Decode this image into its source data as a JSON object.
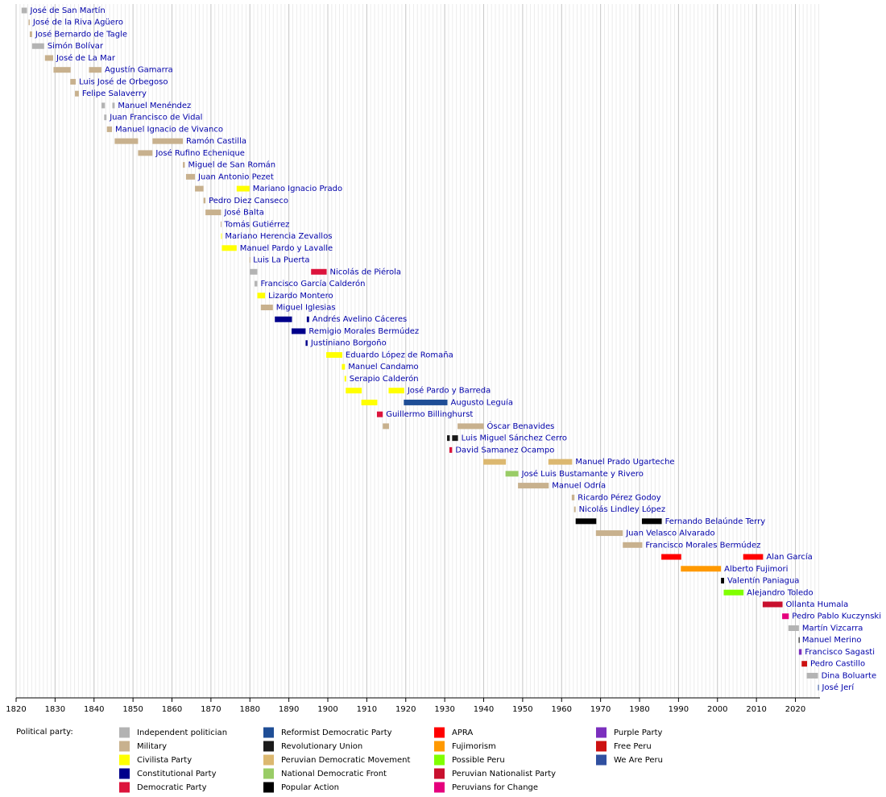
{
  "chart_data": {
    "type": "timeline",
    "xlim": [
      1820,
      2026.3
    ],
    "xticks": [
      1820,
      1830,
      1840,
      1850,
      1860,
      1870,
      1880,
      1890,
      1900,
      1910,
      1920,
      1930,
      1940,
      1950,
      1960,
      1970,
      1980,
      1990,
      2000,
      2010,
      2020
    ],
    "grid": true,
    "minor_grid": true,
    "legend_title": "Political party:",
    "parties": [
      {
        "name": "Independent politician",
        "color": "#b3b3b3"
      },
      {
        "name": "Military",
        "color": "#c8b18e"
      },
      {
        "name": "Civilista Party",
        "color": "#ffff00"
      },
      {
        "name": "Constitutional Party",
        "color": "#00008b"
      },
      {
        "name": "Democratic Party",
        "color": "#dc143c"
      },
      {
        "name": "Reformist Democratic Party",
        "color": "#1f4e96"
      },
      {
        "name": "Revolutionary Union",
        "color": "#1a1a1a"
      },
      {
        "name": "Peruvian Democratic Movement",
        "color": "#dcb870"
      },
      {
        "name": "National Democratic Front",
        "color": "#99cc66"
      },
      {
        "name": "Popular Action",
        "color": "#000000"
      },
      {
        "name": "APRA",
        "color": "#ff0000"
      },
      {
        "name": "Fujimorism",
        "color": "#ff9900"
      },
      {
        "name": "Possible Peru",
        "color": "#80ff00"
      },
      {
        "name": "Peruvian Nationalist Party",
        "color": "#c8102e"
      },
      {
        "name": "Peruvians for Change",
        "color": "#e5007d"
      },
      {
        "name": "Purple Party",
        "color": "#7b2fbe"
      },
      {
        "name": "Free Peru",
        "color": "#cc1111"
      },
      {
        "name": "We Are Peru",
        "color": "#3050a0"
      }
    ],
    "rows": [
      {
        "name": "José de San Martín",
        "spans": [
          {
            "start": 1821.4,
            "end": 1822.8,
            "party": "Independent politician"
          }
        ]
      },
      {
        "name": "José de la Riva Agüero",
        "spans": [
          {
            "start": 1823.2,
            "end": 1823.5,
            "party": "Military"
          }
        ]
      },
      {
        "name": "José Bernardo de Tagle",
        "spans": [
          {
            "start": 1823.5,
            "end": 1824.1,
            "party": "Military"
          }
        ]
      },
      {
        "name": "Simón Bolívar",
        "spans": [
          {
            "start": 1824.1,
            "end": 1827.2,
            "party": "Independent politician"
          }
        ]
      },
      {
        "name": "José de La Mar",
        "spans": [
          {
            "start": 1827.4,
            "end": 1829.5,
            "party": "Military"
          }
        ]
      },
      {
        "name": "Agustín Gamarra",
        "spans": [
          {
            "start": 1829.6,
            "end": 1834.0,
            "party": "Military"
          },
          {
            "start": 1838.7,
            "end": 1841.9,
            "party": "Military"
          }
        ]
      },
      {
        "name": "Luis José de Orbegoso",
        "spans": [
          {
            "start": 1833.9,
            "end": 1835.3,
            "party": "Military"
          }
        ]
      },
      {
        "name": "Felipe Salaverry",
        "spans": [
          {
            "start": 1835.1,
            "end": 1836.1,
            "party": "Military"
          }
        ]
      },
      {
        "name": "Manuel Menéndez",
        "spans": [
          {
            "start": 1841.9,
            "end": 1842.8,
            "party": "Independent politician"
          },
          {
            "start": 1844.7,
            "end": 1845.3,
            "party": "Independent politician"
          }
        ]
      },
      {
        "name": "Juan Francisco de Vidal",
        "spans": [
          {
            "start": 1842.6,
            "end": 1843.2,
            "party": "Independent politician"
          }
        ]
      },
      {
        "name": "Manuel Ignacio de Vivanco",
        "spans": [
          {
            "start": 1843.3,
            "end": 1844.6,
            "party": "Military"
          }
        ]
      },
      {
        "name": "Ramón Castilla",
        "spans": [
          {
            "start": 1845.3,
            "end": 1851.3,
            "party": "Military"
          },
          {
            "start": 1855.0,
            "end": 1862.8,
            "party": "Military"
          }
        ]
      },
      {
        "name": "José Rufino Echenique",
        "spans": [
          {
            "start": 1851.3,
            "end": 1855.0,
            "party": "Military"
          }
        ]
      },
      {
        "name": "Miguel de San Román",
        "spans": [
          {
            "start": 1862.8,
            "end": 1863.3,
            "party": "Military"
          }
        ]
      },
      {
        "name": "Juan Antonio Pezet",
        "spans": [
          {
            "start": 1863.6,
            "end": 1865.9,
            "party": "Military"
          }
        ]
      },
      {
        "name": "Mariano Ignacio Prado",
        "spans": [
          {
            "start": 1865.9,
            "end": 1868.1,
            "party": "Military"
          },
          {
            "start": 1876.6,
            "end": 1879.9,
            "party": "Civilista Party"
          }
        ]
      },
      {
        "name": "Pedro Diez Canseco",
        "spans": [
          {
            "start": 1868.1,
            "end": 1868.6,
            "party": "Military"
          }
        ]
      },
      {
        "name": "José Balta",
        "spans": [
          {
            "start": 1868.6,
            "end": 1872.6,
            "party": "Military"
          }
        ]
      },
      {
        "name": "Tomás Gutiérrez",
        "spans": [
          {
            "start": 1872.5,
            "end": 1872.6,
            "party": "Military"
          }
        ]
      },
      {
        "name": "Mariano Herencia Zevallos",
        "spans": [
          {
            "start": 1872.6,
            "end": 1872.8,
            "party": "Civilista Party"
          }
        ]
      },
      {
        "name": "Manuel Pardo y Lavalle",
        "spans": [
          {
            "start": 1872.8,
            "end": 1876.6,
            "party": "Civilista Party"
          }
        ]
      },
      {
        "name": "Luis La Puerta",
        "spans": [
          {
            "start": 1879.9,
            "end": 1880.0,
            "party": "Military"
          }
        ]
      },
      {
        "name": "Nicolás de Piérola",
        "spans": [
          {
            "start": 1880.0,
            "end": 1881.9,
            "party": "Independent politician"
          },
          {
            "start": 1895.7,
            "end": 1899.7,
            "party": "Democratic Party"
          }
        ]
      },
      {
        "name": "Francisco García Calderón",
        "spans": [
          {
            "start": 1881.2,
            "end": 1881.9,
            "party": "Independent politician"
          }
        ]
      },
      {
        "name": "Lizardo Montero",
        "spans": [
          {
            "start": 1881.9,
            "end": 1883.9,
            "party": "Civilista Party"
          }
        ]
      },
      {
        "name": "Miguel Iglesias",
        "spans": [
          {
            "start": 1882.8,
            "end": 1885.9,
            "party": "Military"
          }
        ]
      },
      {
        "name": "Andrés Avelino Cáceres",
        "spans": [
          {
            "start": 1886.4,
            "end": 1890.8,
            "party": "Constitutional Party"
          },
          {
            "start": 1894.6,
            "end": 1895.2,
            "party": "Constitutional Party"
          }
        ]
      },
      {
        "name": "Remigio Morales Bermúdez",
        "spans": [
          {
            "start": 1890.7,
            "end": 1894.3,
            "party": "Constitutional Party"
          }
        ]
      },
      {
        "name": "Justiniano Borgoño",
        "spans": [
          {
            "start": 1894.3,
            "end": 1894.8,
            "party": "Constitutional Party"
          }
        ]
      },
      {
        "name": "Eduardo López de Romaña",
        "spans": [
          {
            "start": 1899.6,
            "end": 1903.7,
            "party": "Civilista Party"
          }
        ]
      },
      {
        "name": "Manuel Candamo",
        "spans": [
          {
            "start": 1903.6,
            "end": 1904.4,
            "party": "Civilista Party"
          }
        ]
      },
      {
        "name": "Serapio Calderón",
        "spans": [
          {
            "start": 1904.3,
            "end": 1904.7,
            "party": "Civilista Party"
          }
        ]
      },
      {
        "name": "José Pardo y Barreda",
        "spans": [
          {
            "start": 1904.6,
            "end": 1908.7,
            "party": "Civilista Party"
          },
          {
            "start": 1915.6,
            "end": 1919.6,
            "party": "Civilista Party"
          }
        ]
      },
      {
        "name": "Augusto Leguía",
        "spans": [
          {
            "start": 1908.6,
            "end": 1912.7,
            "party": "Civilista Party"
          },
          {
            "start": 1919.5,
            "end": 1930.7,
            "party": "Reformist Democratic Party"
          }
        ]
      },
      {
        "name": "Guillermo Billinghurst",
        "spans": [
          {
            "start": 1912.6,
            "end": 1914.1,
            "party": "Democratic Party"
          }
        ]
      },
      {
        "name": "Óscar Benavides",
        "spans": [
          {
            "start": 1914.1,
            "end": 1915.7,
            "party": "Military"
          },
          {
            "start": 1933.3,
            "end": 1940.0,
            "party": "Military"
          }
        ]
      },
      {
        "name": "Luis Miguel Sánchez Cerro",
        "spans": [
          {
            "start": 1930.6,
            "end": 1931.3,
            "party": "Revolutionary Union"
          },
          {
            "start": 1931.9,
            "end": 1933.4,
            "party": "Revolutionary Union"
          }
        ]
      },
      {
        "name": "David Samanez Ocampo",
        "spans": [
          {
            "start": 1931.2,
            "end": 1931.9,
            "party": "Democratic Party"
          }
        ]
      },
      {
        "name": "Manuel Prado Ugarteche",
        "spans": [
          {
            "start": 1939.9,
            "end": 1945.7,
            "party": "Peruvian Democratic Movement"
          },
          {
            "start": 1956.6,
            "end": 1962.7,
            "party": "Peruvian Democratic Movement"
          }
        ]
      },
      {
        "name": "José Luis Bustamante y Rivero",
        "spans": [
          {
            "start": 1945.6,
            "end": 1948.9,
            "party": "National Democratic Front"
          }
        ]
      },
      {
        "name": "Manuel Odría",
        "spans": [
          {
            "start": 1948.8,
            "end": 1956.7,
            "party": "Military"
          }
        ]
      },
      {
        "name": "Ricardo Pérez Godoy",
        "spans": [
          {
            "start": 1962.6,
            "end": 1963.3,
            "party": "Military"
          }
        ]
      },
      {
        "name": "Nicolás Lindley López",
        "spans": [
          {
            "start": 1963.2,
            "end": 1963.6,
            "party": "Military"
          }
        ]
      },
      {
        "name": "Fernando Belaúnde Terry",
        "spans": [
          {
            "start": 1963.6,
            "end": 1968.9,
            "party": "Popular Action"
          },
          {
            "start": 1980.6,
            "end": 1985.7,
            "party": "Popular Action"
          }
        ]
      },
      {
        "name": "Juan Velasco Alvarado",
        "spans": [
          {
            "start": 1968.8,
            "end": 1975.7,
            "party": "Military"
          }
        ]
      },
      {
        "name": "Francisco Morales Bermúdez",
        "spans": [
          {
            "start": 1975.7,
            "end": 1980.7,
            "party": "Military"
          }
        ]
      },
      {
        "name": "Alan García",
        "spans": [
          {
            "start": 1985.6,
            "end": 1990.7,
            "party": "APRA"
          },
          {
            "start": 2006.6,
            "end": 2011.7,
            "party": "APRA"
          }
        ]
      },
      {
        "name": "Alberto Fujimori",
        "spans": [
          {
            "start": 1990.6,
            "end": 2000.9,
            "party": "Fujimorism"
          }
        ]
      },
      {
        "name": "Valentín Paniagua",
        "spans": [
          {
            "start": 2000.9,
            "end": 2001.7,
            "party": "Popular Action"
          }
        ]
      },
      {
        "name": "Alejandro Toledo",
        "spans": [
          {
            "start": 2001.6,
            "end": 2006.7,
            "party": "Possible Peru"
          }
        ]
      },
      {
        "name": "Ollanta Humala",
        "spans": [
          {
            "start": 2011.6,
            "end": 2016.7,
            "party": "Peruvian Nationalist Party"
          }
        ]
      },
      {
        "name": "Pedro Pablo Kuczynski",
        "spans": [
          {
            "start": 2016.6,
            "end": 2018.3,
            "party": "Peruvians for Change"
          }
        ]
      },
      {
        "name": "Martín Vizcarra",
        "spans": [
          {
            "start": 2018.2,
            "end": 2020.9,
            "party": "Independent politician"
          }
        ]
      },
      {
        "name": "Manuel Merino",
        "spans": [
          {
            "start": 2020.85,
            "end": 2020.9,
            "party": "Popular Action"
          }
        ]
      },
      {
        "name": "Francisco Sagasti",
        "spans": [
          {
            "start": 2020.9,
            "end": 2021.6,
            "party": "Purple Party"
          }
        ]
      },
      {
        "name": "Pedro Castillo",
        "spans": [
          {
            "start": 2021.6,
            "end": 2023.0,
            "party": "Free Peru"
          }
        ]
      },
      {
        "name": "Dina Boluarte",
        "spans": [
          {
            "start": 2022.9,
            "end": 2025.8,
            "party": "Independent politician"
          }
        ]
      },
      {
        "name": "José Jerí",
        "spans": [
          {
            "start": 2025.8,
            "end": 2026.0,
            "party": "We Are Peru"
          }
        ]
      }
    ]
  }
}
